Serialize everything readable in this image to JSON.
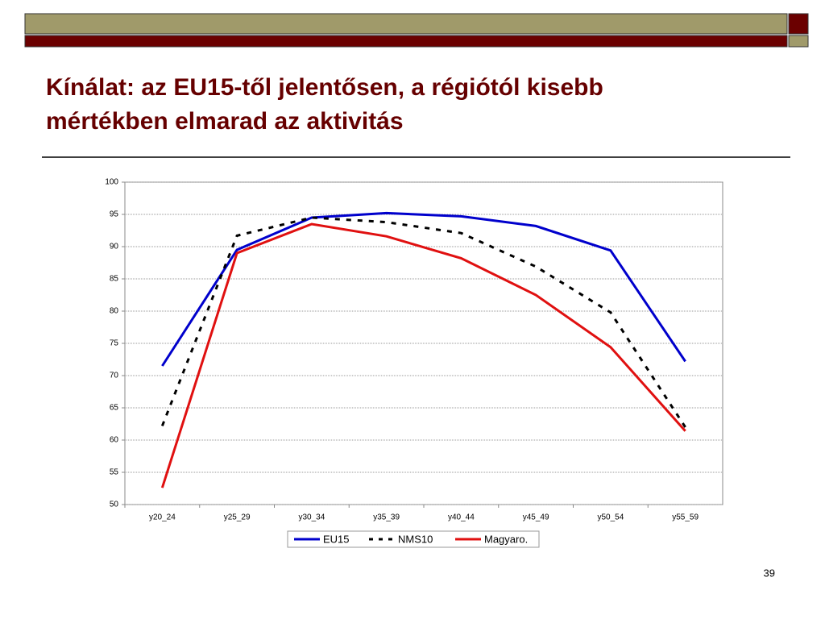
{
  "slide": {
    "title": [
      "Kínálat: az EU15-től jelentősen, a régiótól kisebb",
      "mértékben elmarad az aktivitás"
    ],
    "page_number": 39
  },
  "chart_data": {
    "type": "line",
    "categories": [
      "y20_24",
      "y25_29",
      "y30_34",
      "y35_39",
      "y40_44",
      "y45_49",
      "y50_54",
      "y55_59"
    ],
    "series": [
      {
        "name": "EU15",
        "color": "#0000cc",
        "line_style": "solid",
        "values": [
          71.5,
          89.5,
          94.5,
          95.2,
          94.7,
          93.2,
          89.4,
          72.2
        ]
      },
      {
        "name": "NMS10",
        "color": "#000000",
        "line_style": "dashed",
        "values": [
          62.2,
          91.7,
          94.5,
          93.8,
          92.1,
          86.9,
          79.8,
          62.0
        ]
      },
      {
        "name": "Magyaro.",
        "color": "#e01010",
        "line_style": "solid",
        "values": [
          52.6,
          89.0,
          93.5,
          91.6,
          88.2,
          82.5,
          74.4,
          61.4
        ]
      }
    ],
    "ylim": [
      50,
      100
    ],
    "yticks": [
      50,
      55,
      60,
      65,
      70,
      75,
      80,
      85,
      90,
      95,
      100
    ],
    "grid": true,
    "legend": "bottom"
  }
}
